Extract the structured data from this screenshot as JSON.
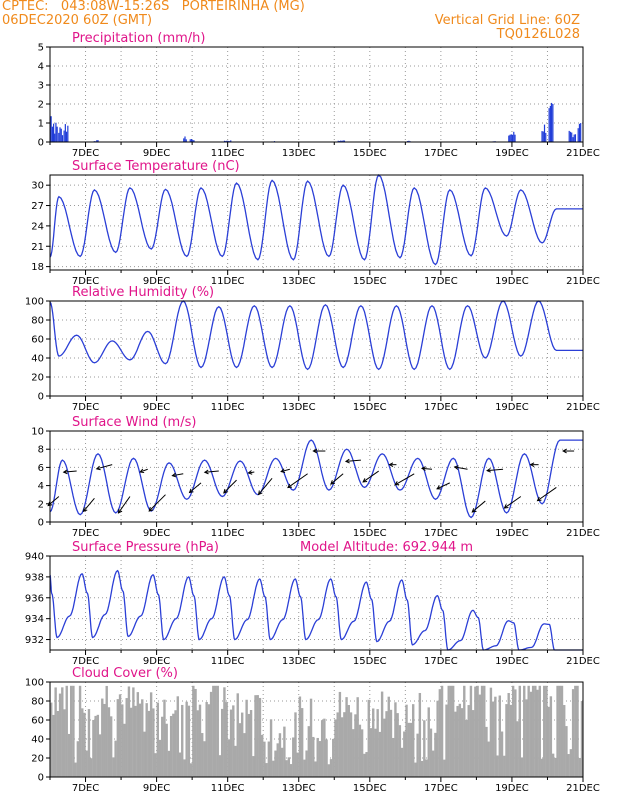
{
  "header": {
    "line1_left": "CPTEC:   043:08W-15:26S   PORTEIRINHA (MG)",
    "line2_left": "06DEC2020 60Z (GMT)",
    "line1_right": "Vertical Grid Line: 60Z",
    "line2_right": "TQ0126L028"
  },
  "colors": {
    "line": "#2b3fd6",
    "bar": "#1f3bd8",
    "cloud": "#a9a9a9",
    "title": "#e0158a",
    "header": "#f08a1c",
    "grid": "#9a9a9a"
  },
  "chart_data": [
    {
      "type": "bar",
      "title": "Precipitation (mm/h)",
      "x_range_days": [
        6.0,
        21.0
      ],
      "ylim": [
        0,
        5
      ],
      "yticks": [
        0,
        1,
        2,
        3,
        4,
        5
      ],
      "xtick_labels": [
        "7DEC",
        "9DEC",
        "11DEC",
        "13DEC",
        "15DEC",
        "17DEC",
        "19DEC",
        "21DEC"
      ],
      "events": [
        {
          "day": 6.05,
          "value": 1.9
        },
        {
          "day": 6.15,
          "value": 1.1
        },
        {
          "day": 6.3,
          "value": 0.9
        },
        {
          "day": 6.45,
          "value": 1.2
        },
        {
          "day": 7.3,
          "value": 0.1
        },
        {
          "day": 9.8,
          "value": 0.3
        },
        {
          "day": 10.0,
          "value": 0.2
        },
        {
          "day": 11.0,
          "value": 0.1
        },
        {
          "day": 12.3,
          "value": 0.05
        },
        {
          "day": 14.2,
          "value": 0.1
        },
        {
          "day": 16.1,
          "value": 0.1
        },
        {
          "day": 18.5,
          "value": 0.05
        },
        {
          "day": 19.0,
          "value": 0.6
        },
        {
          "day": 19.9,
          "value": 1.1
        },
        {
          "day": 20.1,
          "value": 2.1
        },
        {
          "day": 20.7,
          "value": 0.7
        },
        {
          "day": 20.9,
          "value": 1.2
        }
      ]
    },
    {
      "type": "line",
      "title": "Surface Temperature (nC)",
      "ylim": [
        17.5,
        31.5
      ],
      "yticks": [
        18,
        21,
        24,
        27,
        30
      ],
      "xtick_labels": [
        "7DEC",
        "9DEC",
        "11DEC",
        "13DEC",
        "15DEC",
        "17DEC",
        "19DEC",
        "21DEC"
      ],
      "daily_max": [
        28.3,
        29.3,
        29.6,
        29.4,
        29.6,
        30.3,
        30.7,
        30.6,
        30.0,
        31.5,
        29.6,
        29.3,
        29.6,
        29.3,
        26.5
      ],
      "daily_min": [
        19.2,
        19.5,
        20.1,
        20.6,
        19.5,
        19.5,
        19.0,
        19.0,
        19.5,
        19.0,
        19.3,
        18.3,
        19.6,
        22.5,
        21.5
      ]
    },
    {
      "type": "line",
      "title": "Relative Humidity (%)",
      "ylim": [
        0,
        100
      ],
      "yticks": [
        0,
        20,
        40,
        60,
        80,
        100
      ],
      "xtick_labels": [
        "7DEC",
        "9DEC",
        "11DEC",
        "13DEC",
        "15DEC",
        "17DEC",
        "19DEC",
        "21DEC"
      ],
      "daily_max": [
        100,
        64,
        58,
        68,
        100,
        94,
        95,
        95,
        96,
        95,
        95,
        95,
        95,
        100,
        100
      ],
      "daily_min": [
        42,
        35,
        38,
        34,
        30,
        30,
        30,
        28,
        30,
        28,
        28,
        28,
        40,
        42,
        48
      ]
    },
    {
      "type": "line",
      "title": "Surface Wind (m/s)",
      "ylim": [
        0,
        10
      ],
      "yticks": [
        0,
        2,
        4,
        6,
        8,
        10
      ],
      "xtick_labels": [
        "7DEC",
        "9DEC",
        "11DEC",
        "13DEC",
        "15DEC",
        "17DEC",
        "19DEC",
        "21DEC"
      ],
      "daily_max": [
        6.8,
        7.5,
        7.0,
        6.5,
        6.8,
        6.7,
        7.0,
        9.0,
        8.0,
        7.5,
        7.0,
        7.0,
        7.0,
        7.5,
        9.0
      ],
      "daily_min": [
        1.0,
        0.8,
        1.0,
        1.2,
        2.5,
        2.8,
        3.0,
        3.5,
        3.5,
        3.8,
        3.5,
        2.5,
        0.5,
        1.0,
        2.0
      ]
    },
    {
      "type": "line",
      "title": "Surface Pressure (hPa)",
      "annotation": "Model Altitude: 692.944 m",
      "ylim": [
        931,
        940
      ],
      "yticks": [
        932,
        934,
        936,
        938,
        940
      ],
      "xtick_labels": [
        "7DEC",
        "9DEC",
        "11DEC",
        "13DEC",
        "15DEC",
        "17DEC",
        "19DEC",
        "21DEC"
      ],
      "daily_max": [
        938.2,
        938.3,
        938.6,
        938.2,
        938.0,
        938.0,
        937.8,
        937.8,
        937.8,
        937.5,
        937.7,
        936.2,
        934.8,
        933.8,
        933.5
      ],
      "daily_min": [
        932.2,
        932.2,
        932.3,
        932.0,
        932.0,
        932.0,
        932.0,
        932.0,
        932.0,
        931.8,
        931.5,
        931.0,
        931.0,
        931.0,
        931.0
      ]
    },
    {
      "type": "bar",
      "title": "Cloud Cover (%)",
      "ylim": [
        0,
        100
      ],
      "yticks": [
        0,
        20,
        40,
        60,
        80,
        100
      ],
      "xtick_labels": [
        "7DEC",
        "9DEC",
        "11DEC",
        "13DEC",
        "15DEC",
        "17DEC",
        "19DEC",
        "21DEC"
      ],
      "daily_mean": [
        90,
        85,
        75,
        80,
        90,
        65,
        45,
        60,
        70,
        75,
        70,
        85,
        97,
        97,
        96
      ]
    }
  ]
}
